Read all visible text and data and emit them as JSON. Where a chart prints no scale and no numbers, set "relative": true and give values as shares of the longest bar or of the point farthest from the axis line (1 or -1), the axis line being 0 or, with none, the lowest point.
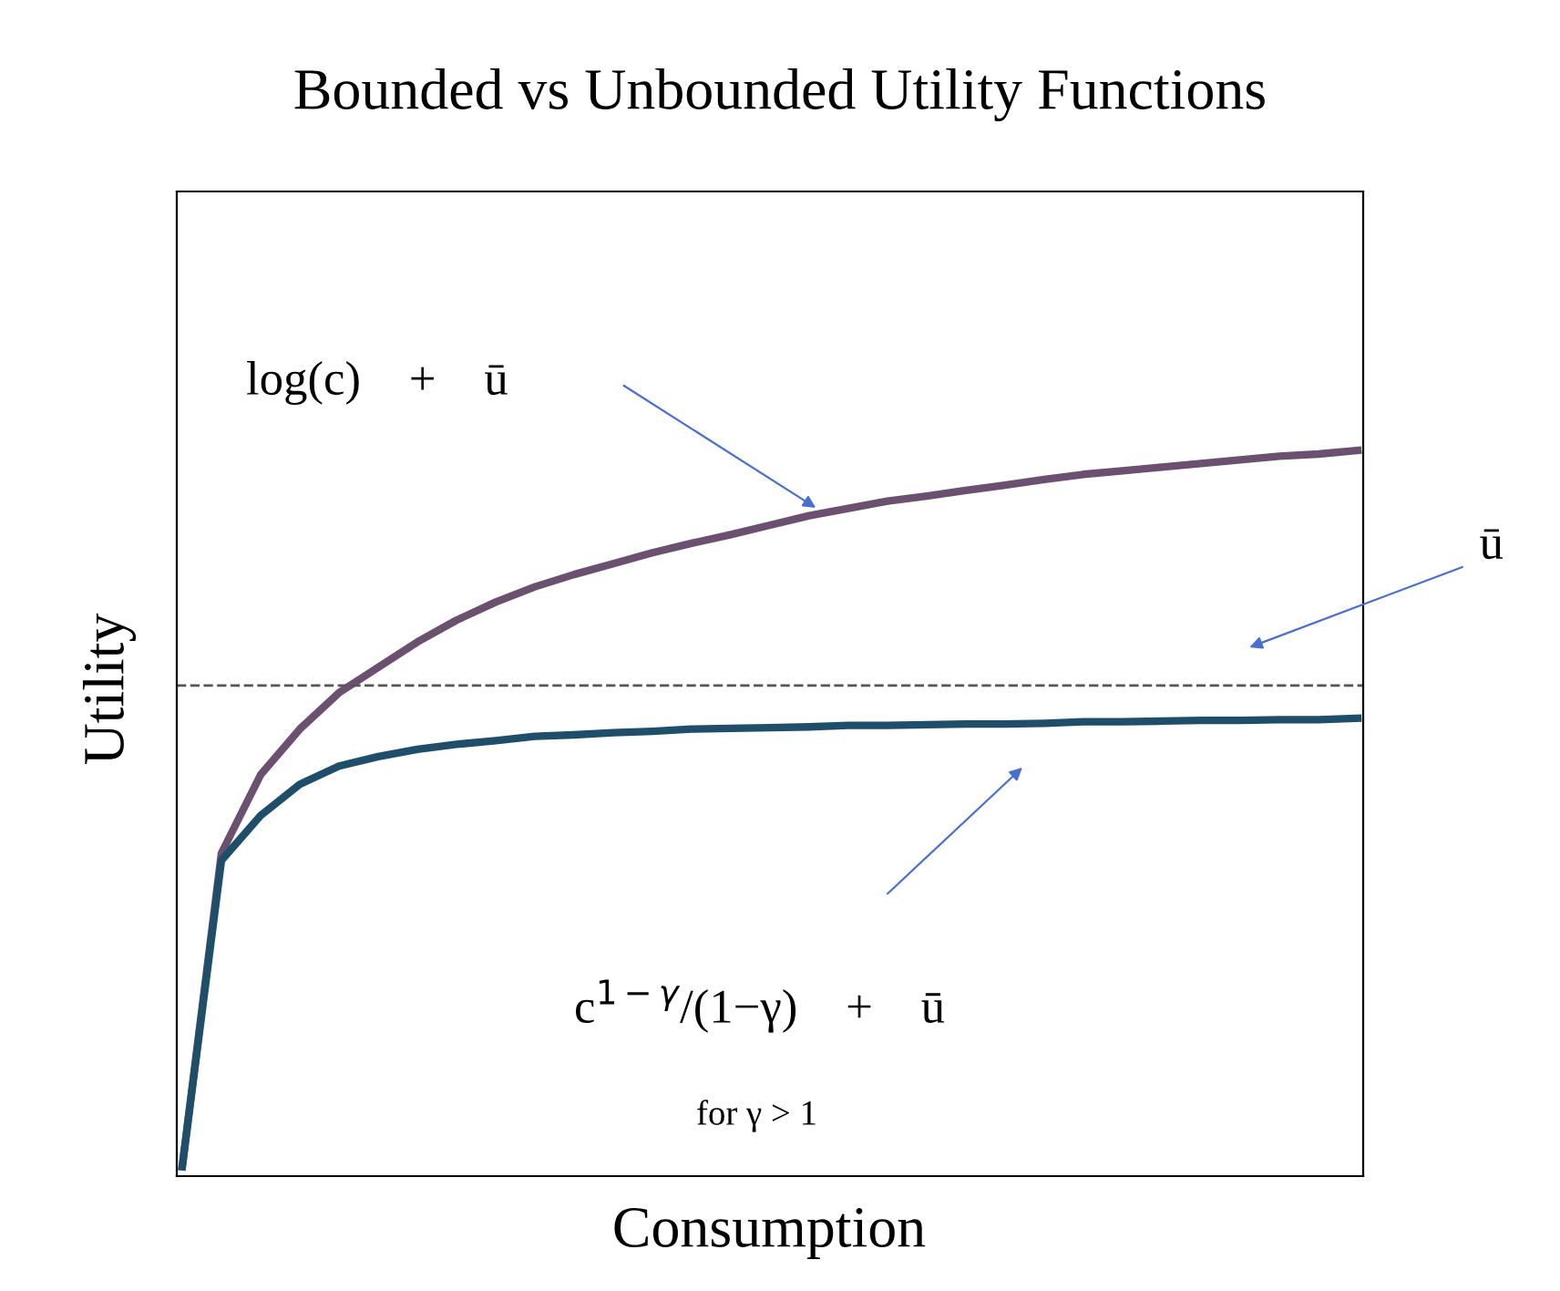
{
  "chart_data": {
    "type": "line",
    "title": "Bounded vs Unbounded Utility Functions",
    "xlabel": "Consumption",
    "ylabel": "Utility",
    "relative": true,
    "grid": false,
    "legend": false,
    "marker": "none",
    "categories": [
      null,
      null,
      null,
      null,
      null,
      null,
      null,
      null,
      null,
      null,
      null,
      null,
      null,
      null,
      null,
      null,
      null,
      null,
      null,
      null,
      null,
      null,
      null,
      null,
      null,
      null,
      null,
      null,
      null,
      null,
      null
    ],
    "series": [
      {
        "color": "#6b5070",
        "values": [
          0.013,
          0.445,
          0.553,
          0.616,
          0.666,
          0.701,
          0.736,
          0.766,
          0.791,
          0.812,
          0.829,
          0.844,
          0.859,
          0.872,
          0.884,
          0.897,
          0.91,
          0.92,
          0.93,
          0.937,
          0.945,
          0.952,
          0.96,
          0.967,
          0.972,
          0.977,
          0.982,
          0.987,
          0.992,
          0.995,
          1.0
        ]
      },
      {
        "color": "#1f4e6b",
        "values": [
          0.013,
          0.435,
          0.497,
          0.54,
          0.565,
          0.578,
          0.588,
          0.595,
          0.6,
          0.606,
          0.608,
          0.611,
          0.613,
          0.616,
          0.617,
          0.618,
          0.619,
          0.621,
          0.621,
          0.622,
          0.623,
          0.623,
          0.624,
          0.626,
          0.626,
          0.627,
          0.628,
          0.628,
          0.629,
          0.629,
          0.631
        ]
      }
    ],
    "ref_lines": [
      {
        "axis": "y",
        "value": 0.676,
        "color": "#555555",
        "line_style": "dashed"
      }
    ],
    "annotations": [
      "log(c)    +    ū",
      "ū",
      "c$^{1−γ}$/(1−γ)    +    ū",
      "for γ > 1"
    ]
  }
}
